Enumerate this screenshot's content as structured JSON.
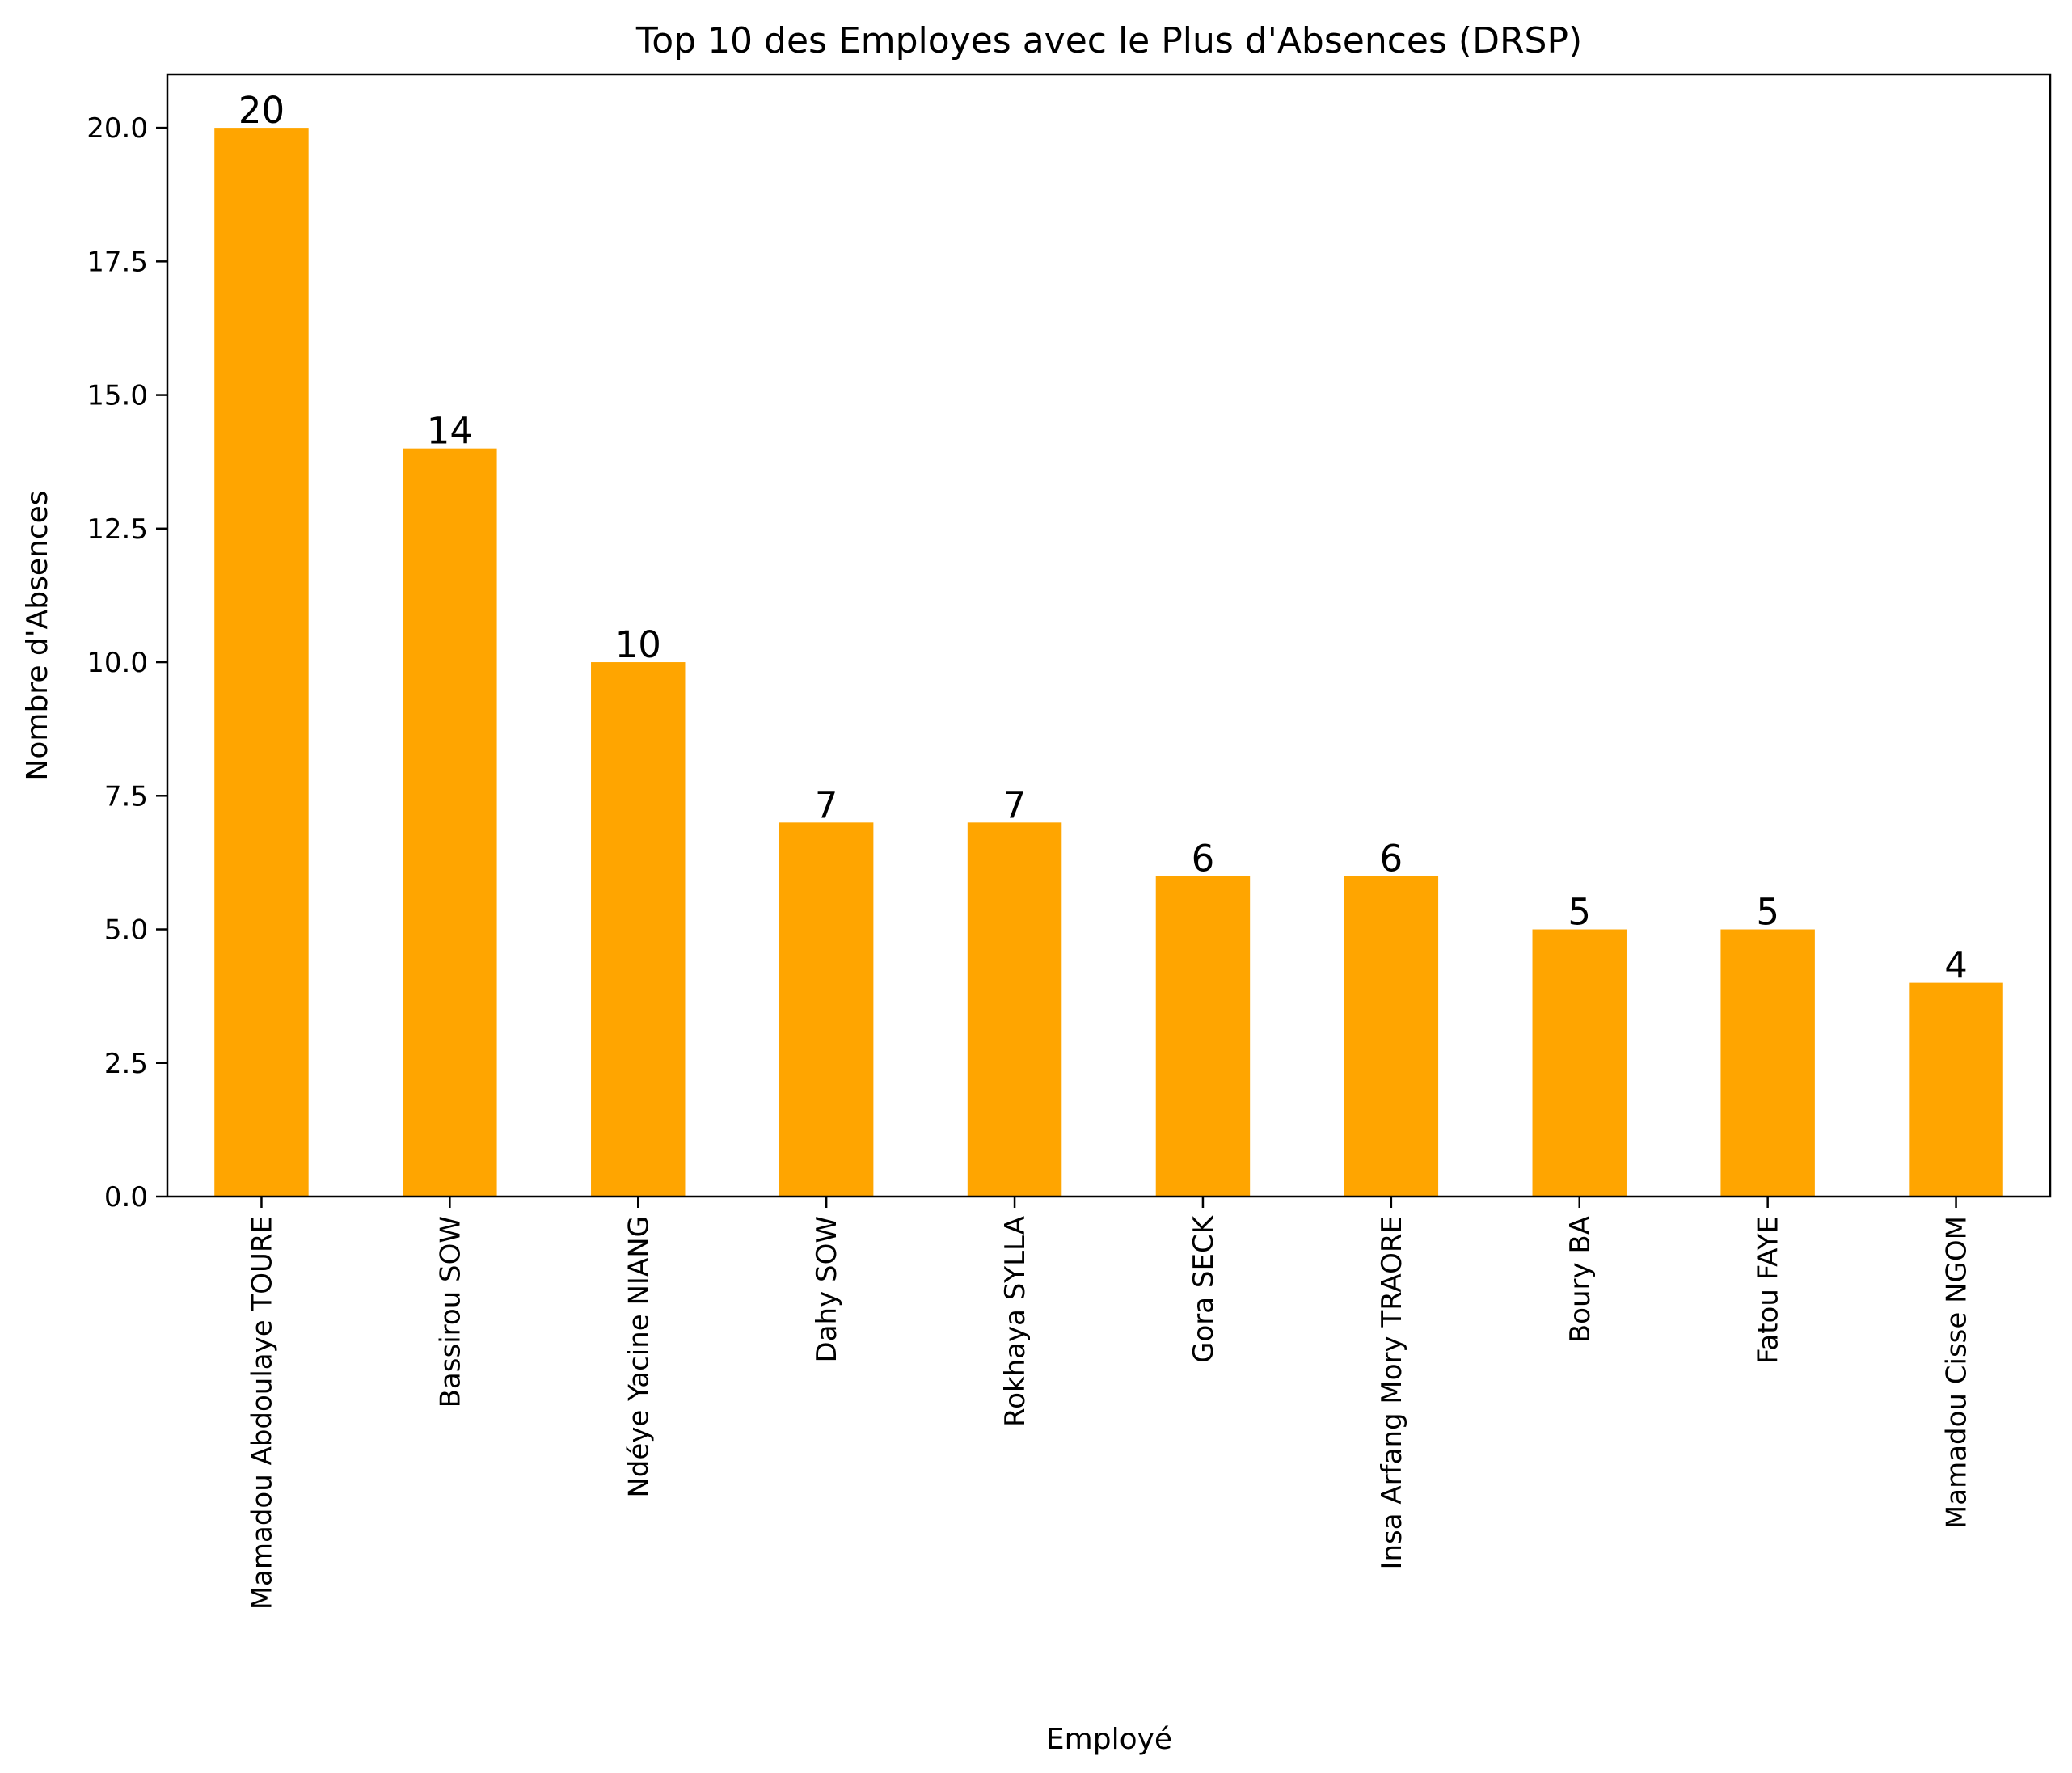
{
  "chart_data": {
    "type": "bar",
    "title": "Top 10 des Employes avec le Plus d'Absences (DRSP)",
    "xlabel": "Employé",
    "ylabel": "Nombre d'Absences",
    "categories": [
      "Mamadou Abdoulaye TOURE",
      "Bassirou SOW",
      "Ndéye Yacine NIANG",
      "Dahy SOW",
      "Rokhaya SYLLA",
      "Gora SECK",
      "Insa Arfang Mory TRAORE",
      "Boury BA",
      "Fatou FAYE",
      "Mamadou Cisse NGOM"
    ],
    "values": [
      20,
      14,
      10,
      7,
      7,
      6,
      6,
      5,
      5,
      4
    ],
    "data_labels": [
      "20",
      "14",
      "10",
      "7",
      "7",
      "6",
      "6",
      "5",
      "5",
      "4"
    ],
    "ylim": [
      0,
      21
    ],
    "yticks": [
      0,
      2.5,
      5,
      7.5,
      10,
      12.5,
      15,
      17.5,
      20
    ],
    "ytick_labels": [
      "0.0",
      "2.5",
      "5.0",
      "7.5",
      "10.0",
      "12.5",
      "15.0",
      "17.5",
      "20.0"
    ],
    "bar_color": "#FFA500",
    "grid": false,
    "legend": "none"
  }
}
